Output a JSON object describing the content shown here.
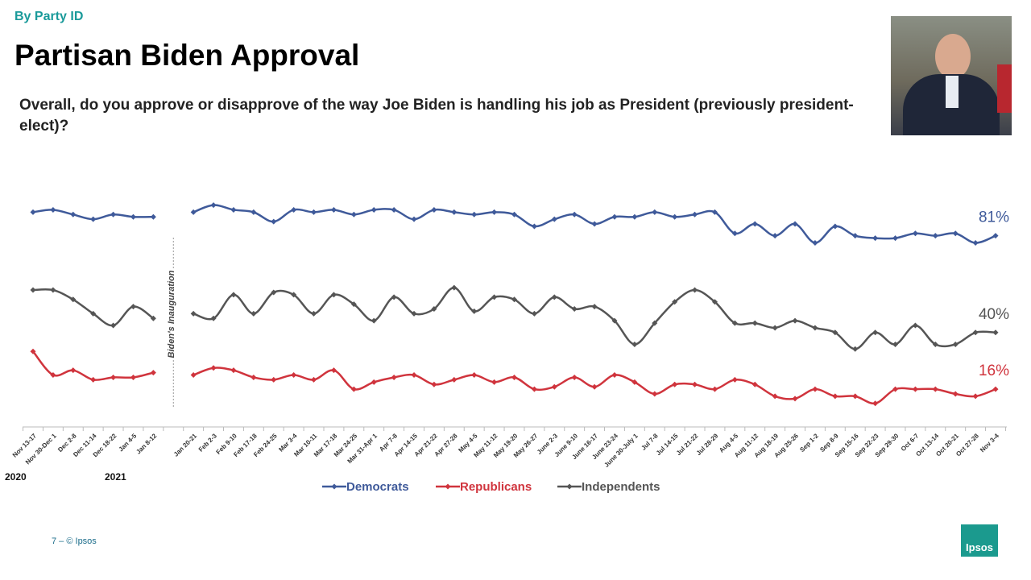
{
  "header": {
    "kicker": "By Party ID",
    "title": "Partisan Biden Approval",
    "question": "Overall, do you approve or disapprove of the way Joe Biden is handling his job as President (previously president-elect)?"
  },
  "chart_data": {
    "type": "line",
    "categories": [
      "Nov 13-17",
      "Nov 30-Dec 1",
      "Dec 2-8",
      "Dec 11-14",
      "Dec 18-22",
      "Jan 4-5",
      "Jan 8-12",
      null,
      "Jan 20-21",
      "Feb 2-3",
      "Feb 9-10",
      "Feb 17-18",
      "Feb 24-25",
      "Mar 3-4",
      "Mar 10-11",
      "Mar 17-18",
      "Mar 24-25",
      "Mar 31-Apr 1",
      "Apr 7-8",
      "Apr 14-15",
      "Apr 21-22",
      "Apr 27-28",
      "May 4-5",
      "May 11-12",
      "May 19-20",
      "May 26-27",
      "June 2-3",
      "June 9-10",
      "June 16-17",
      "June 23-24",
      "June 30-July 1",
      "Jul 7-8",
      "Jul 14-15",
      "Jul 21-22",
      "Jul 28-29",
      "Aug 4-5",
      "Aug 11-12",
      "Aug 18-19",
      "Aug 25-26",
      "Sep 1-2",
      "Sep 8-9",
      "Sep 15-16",
      "Sep 22-23",
      "Sep 29-30",
      "Oct 6-7",
      "Oct 13-14",
      "Oct 20-21",
      "Oct 27-28",
      "Nov 3-4"
    ],
    "year_labels": [
      "2020",
      "2021"
    ],
    "annotation": "Biden's Inauguration",
    "ylim": [
      0,
      100
    ],
    "series": [
      {
        "name": "Democrats",
        "color": "#3f5a9a",
        "values": [
          91,
          92,
          90,
          88,
          90,
          89,
          89,
          null,
          91,
          94,
          92,
          91,
          87,
          92,
          91,
          92,
          90,
          92,
          92,
          88,
          92,
          91,
          90,
          91,
          90,
          85,
          88,
          90,
          86,
          89,
          89,
          91,
          89,
          90,
          91,
          82,
          86,
          81,
          86,
          78,
          85,
          81,
          80,
          80,
          82,
          81,
          82,
          78,
          81
        ],
        "value_labels": [
          null,
          null,
          null,
          null,
          null,
          null,
          null,
          null,
          null,
          null,
          null,
          null,
          null,
          null,
          null,
          null,
          null,
          null,
          null,
          null,
          null,
          null,
          null,
          null,
          null,
          null,
          null,
          null,
          null,
          null,
          null,
          null,
          null,
          null,
          null,
          null,
          null,
          null,
          null,
          null,
          null,
          null,
          null,
          null,
          null,
          null,
          null,
          null,
          "81%"
        ]
      },
      {
        "name": "Republicans",
        "color": "#d0343d",
        "values": [
          32,
          22,
          24,
          20,
          21,
          21,
          23,
          null,
          22,
          25,
          24,
          21,
          20,
          22,
          20,
          24,
          16,
          19,
          21,
          22,
          18,
          20,
          22,
          19,
          21,
          16,
          17,
          21,
          17,
          22,
          19,
          14,
          18,
          18,
          16,
          20,
          18,
          13,
          12,
          16,
          13,
          13,
          10,
          16,
          16,
          16,
          14,
          13,
          16
        ],
        "value_labels": [
          null,
          null,
          null,
          null,
          null,
          null,
          null,
          null,
          null,
          null,
          null,
          null,
          null,
          null,
          null,
          null,
          null,
          null,
          null,
          null,
          null,
          null,
          null,
          null,
          null,
          null,
          null,
          null,
          null,
          null,
          null,
          null,
          null,
          null,
          null,
          null,
          null,
          null,
          null,
          null,
          null,
          null,
          null,
          null,
          null,
          null,
          null,
          null,
          "16%"
        ]
      },
      {
        "name": "Independents",
        "color": "#555555",
        "values": [
          58,
          58,
          54,
          48,
          43,
          51,
          46,
          null,
          48,
          46,
          56,
          48,
          57,
          56,
          48,
          56,
          52,
          45,
          55,
          48,
          50,
          59,
          49,
          55,
          54,
          48,
          55,
          50,
          51,
          45,
          35,
          44,
          53,
          58,
          53,
          44,
          44,
          42,
          45,
          42,
          40,
          33,
          40,
          35,
          43,
          35,
          35,
          40,
          40
        ],
        "value_labels": [
          null,
          null,
          null,
          null,
          null,
          null,
          null,
          null,
          null,
          null,
          null,
          null,
          null,
          null,
          null,
          null,
          null,
          null,
          null,
          null,
          null,
          null,
          null,
          null,
          null,
          null,
          null,
          null,
          null,
          null,
          null,
          null,
          null,
          null,
          null,
          null,
          null,
          null,
          null,
          null,
          null,
          null,
          null,
          null,
          null,
          null,
          null,
          null,
          "40%"
        ]
      }
    ]
  },
  "footer": "7 –  © Ipsos",
  "logo": "Ipsos"
}
